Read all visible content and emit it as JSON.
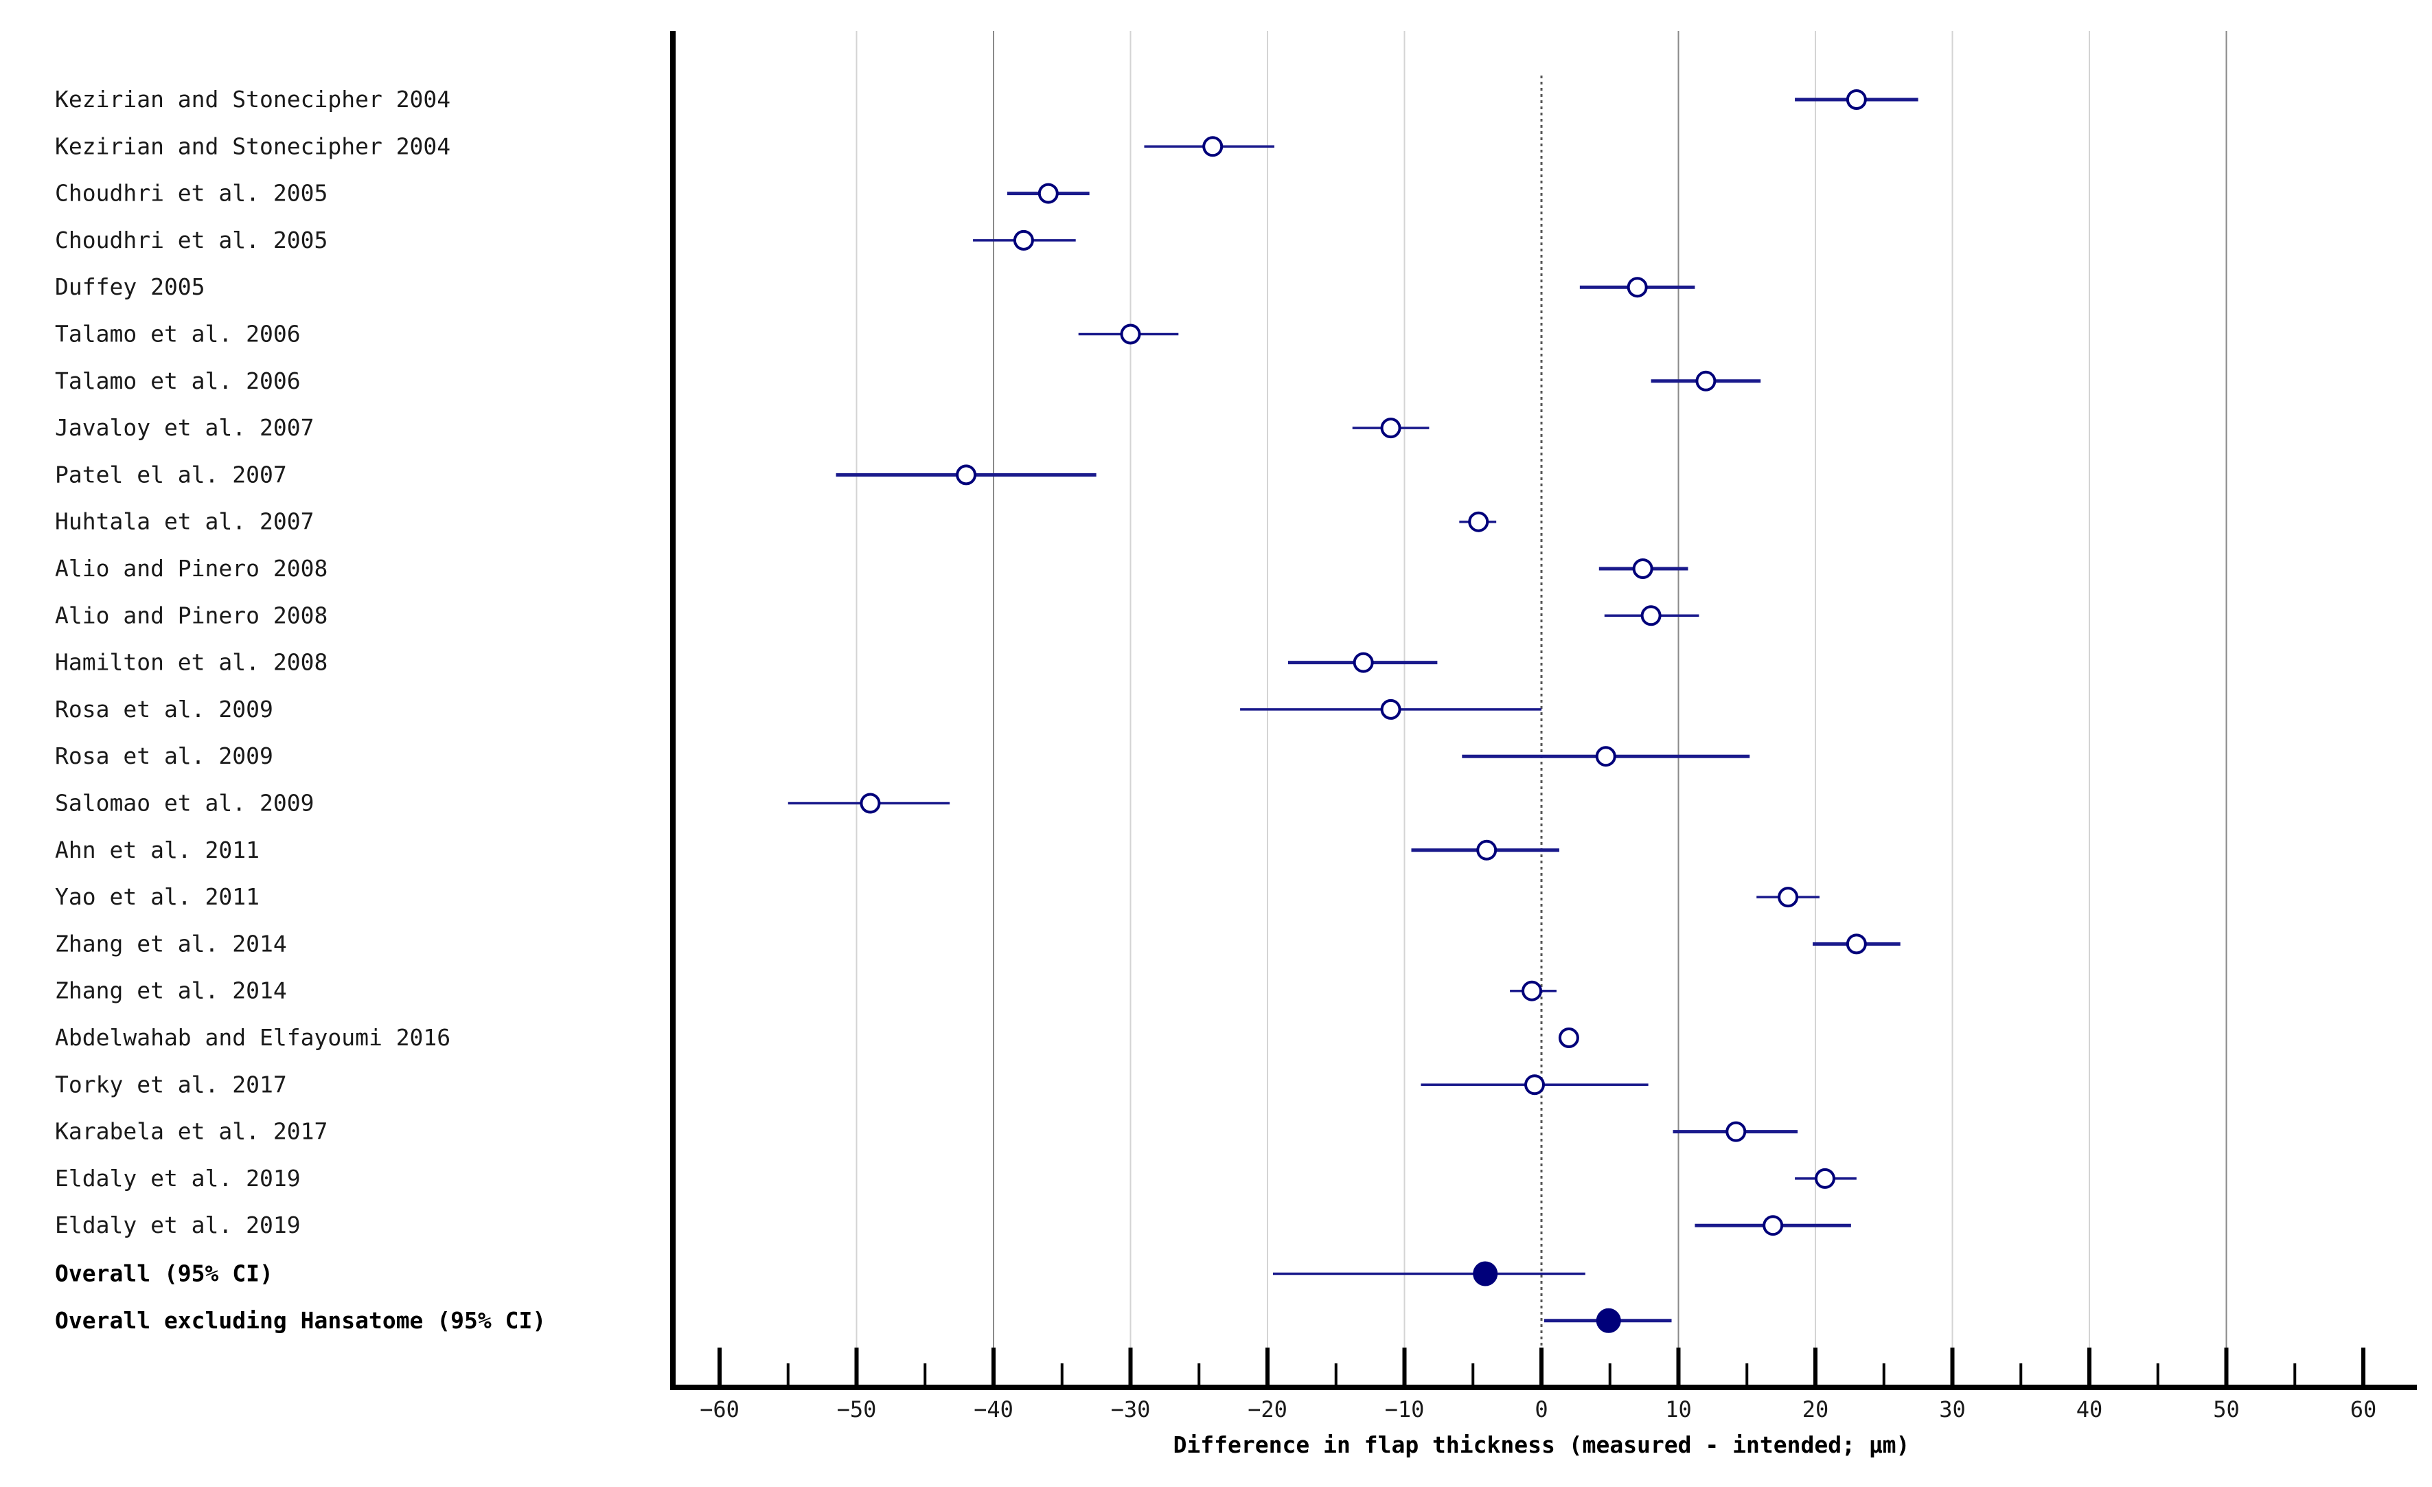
{
  "chart_data": {
    "type": "forest",
    "xlabel": "Difference in flap thickness (measured - intended; μm)",
    "xlim": [
      -63,
      63
    ],
    "x_ticks": [
      -60,
      -50,
      -40,
      -30,
      -20,
      -10,
      0,
      10,
      20,
      30,
      40,
      50,
      60
    ],
    "x_tick_labels": [
      "−60",
      "−50",
      "−40",
      "−30",
      "−20",
      "−10",
      "0",
      "10",
      "20",
      "30",
      "40",
      "50",
      "60"
    ],
    "x_minor_ticks": [
      -55,
      -45,
      -35,
      -25,
      -15,
      -5,
      5,
      15,
      25,
      35,
      45,
      55
    ],
    "gridlines_dark": [
      -40,
      10,
      50
    ],
    "gridlines_light": [
      -50,
      -30,
      -20,
      -10,
      20,
      30,
      40
    ],
    "reference_line": 0,
    "colors": {
      "marker": "#00007a",
      "line": "#1a1a8c",
      "axis": "#000000",
      "grid_dark": "#8a8a8a",
      "grid_light": "#d4d4d4"
    },
    "studies": [
      {
        "label": "Kezirian and Stonecipher 2004",
        "estimate": 23,
        "lower": 18.5,
        "upper": 27.5,
        "line_weight": "thick"
      },
      {
        "label": "Kezirian and Stonecipher 2004",
        "estimate": -24,
        "lower": -29,
        "upper": -19.5,
        "line_weight": "thin"
      },
      {
        "label": "Choudhri et al. 2005",
        "estimate": -36,
        "lower": -39,
        "upper": -33,
        "line_weight": "thick"
      },
      {
        "label": "Choudhri et al. 2005",
        "estimate": -37.8,
        "lower": -41.5,
        "upper": -34,
        "line_weight": "thin"
      },
      {
        "label": "Duffey 2005",
        "estimate": 7,
        "lower": 2.8,
        "upper": 11.2,
        "line_weight": "thick"
      },
      {
        "label": "Talamo et al. 2006",
        "estimate": -30,
        "lower": -33.8,
        "upper": -26.5,
        "line_weight": "thin"
      },
      {
        "label": "Talamo et al. 2006",
        "estimate": 12,
        "lower": 8,
        "upper": 16,
        "line_weight": "thick"
      },
      {
        "label": "Javaloy et al. 2007",
        "estimate": -11,
        "lower": -13.8,
        "upper": -8.2,
        "line_weight": "thin"
      },
      {
        "label": "Patel el al. 2007",
        "estimate": -42,
        "lower": -51.5,
        "upper": -32.5,
        "line_weight": "thick"
      },
      {
        "label": "Huhtala et al. 2007",
        "estimate": -4.6,
        "lower": -6,
        "upper": -3.3,
        "line_weight": "thin"
      },
      {
        "label": "Alio and Pinero 2008",
        "estimate": 7.4,
        "lower": 4.2,
        "upper": 10.7,
        "line_weight": "thick"
      },
      {
        "label": "Alio and Pinero 2008",
        "estimate": 8,
        "lower": 4.6,
        "upper": 11.5,
        "line_weight": "thin"
      },
      {
        "label": "Hamilton et al. 2008",
        "estimate": -13,
        "lower": -18.5,
        "upper": -7.6,
        "line_weight": "thick"
      },
      {
        "label": "Rosa et al. 2009",
        "estimate": -11,
        "lower": -22,
        "upper": 0,
        "line_weight": "thin"
      },
      {
        "label": "Rosa et al. 2009",
        "estimate": 4.7,
        "lower": -5.8,
        "upper": 15.2,
        "line_weight": "thick"
      },
      {
        "label": "Salomao et al. 2009",
        "estimate": -49,
        "lower": -55,
        "upper": -43.2,
        "line_weight": "thin"
      },
      {
        "label": "Ahn et al. 2011",
        "estimate": -4,
        "lower": -9.5,
        "upper": 1.3,
        "line_weight": "thick"
      },
      {
        "label": "Yao et al. 2011",
        "estimate": 18,
        "lower": 15.7,
        "upper": 20.3,
        "line_weight": "thin"
      },
      {
        "label": "Zhang et al. 2014",
        "estimate": 23,
        "lower": 19.8,
        "upper": 26.2,
        "line_weight": "thick"
      },
      {
        "label": "Zhang et al. 2014",
        "estimate": -0.7,
        "lower": -2.3,
        "upper": 1.1,
        "line_weight": "thin"
      },
      {
        "label": "Abdelwahab and Elfayoumi 2016",
        "estimate": 2,
        "lower": 2,
        "upper": 2,
        "line_weight": "thin"
      },
      {
        "label": "Torky et al. 2017",
        "estimate": -0.5,
        "lower": -8.8,
        "upper": 7.8,
        "line_weight": "thin"
      },
      {
        "label": "Karabela et al. 2017",
        "estimate": 14.2,
        "lower": 9.6,
        "upper": 18.7,
        "line_weight": "thick"
      },
      {
        "label": "Eldaly et al. 2019",
        "estimate": 20.7,
        "lower": 18.5,
        "upper": 23,
        "line_weight": "thin"
      },
      {
        "label": "Eldaly et al. 2019",
        "estimate": 16.9,
        "lower": 11.2,
        "upper": 22.6,
        "line_weight": "thick"
      }
    ],
    "overall": [
      {
        "label": "Overall (95% CI)",
        "estimate": -4.1,
        "lower": -19.6,
        "upper": 3.2
      },
      {
        "label": "Overall excluding Hansatome (95% CI)",
        "estimate": 4.9,
        "lower": 0.2,
        "upper": 9.5
      }
    ]
  }
}
